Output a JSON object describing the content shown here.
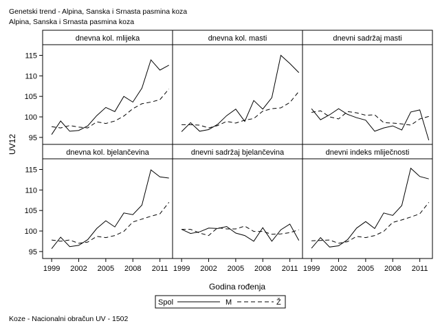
{
  "chart_data": {
    "type": "line",
    "title": "Genetski trend - Alpina, Sanska i Srnasta pasmina koza",
    "subtitle": "Alpina, Sanska i Srnasta pasmina koza",
    "xlabel": "Godina rođenja",
    "ylabel": "UV12",
    "footnote": "Koze - Nacionalni obračun UV - 1502",
    "legend": {
      "title": "Spol",
      "placement": "bottom-center",
      "entries": [
        {
          "label": "M",
          "style": "solid"
        },
        {
          "label": "Ž",
          "style": "dashed"
        }
      ]
    },
    "x": [
      1999,
      2000,
      2001,
      2002,
      2003,
      2004,
      2005,
      2006,
      2007,
      2008,
      2009,
      2010,
      2011,
      2012
    ],
    "xticks": [
      "1999",
      "2002",
      "2005",
      "2008",
      "2011"
    ],
    "xlim": [
      1998.0,
      2012.4
    ],
    "ylim": [
      93.3,
      117.6
    ],
    "yticks": [
      "95",
      "100",
      "105",
      "110",
      "115"
    ],
    "grid": false,
    "line_color": "#000000",
    "panels": [
      {
        "title": "dnevna kol. mlijeka",
        "series": [
          {
            "name": "M",
            "values": [
              95.7,
              99.0,
              96.5,
              96.7,
              97.8,
              100.3,
              102.3,
              101.3,
              105.0,
              103.6,
              107.0,
              113.9,
              111.4,
              112.6
            ]
          },
          {
            "name": "Ž",
            "values": [
              97.6,
              97.3,
              97.9,
              97.5,
              97.3,
              98.8,
              98.4,
              99.0,
              100.2,
              102.0,
              103.2,
              103.6,
              104.2,
              106.8
            ]
          }
        ]
      },
      {
        "title": "dnevna kol. masti",
        "series": [
          {
            "name": "M",
            "values": [
              96.4,
              98.6,
              96.5,
              96.9,
              98.2,
              100.3,
              101.9,
              98.9,
              104.0,
              101.9,
              104.7,
              115.0,
              113.0,
              110.8
            ]
          },
          {
            "name": "Ž",
            "values": [
              98.1,
              98.1,
              98.0,
              97.3,
              97.9,
              98.9,
              98.5,
              99.2,
              99.6,
              101.4,
              102.0,
              102.2,
              103.5,
              106.2
            ]
          }
        ]
      },
      {
        "title": "dnevni sadržaj masti",
        "series": [
          {
            "name": "M",
            "values": [
              102.0,
              99.3,
              100.5,
              102.0,
              100.6,
              99.8,
              99.2,
              96.5,
              97.3,
              97.8,
              96.8,
              101.2,
              101.7,
              94.3
            ]
          },
          {
            "name": "Ž",
            "values": [
              101.1,
              101.5,
              100.0,
              99.5,
              101.3,
              101.0,
              100.4,
              100.5,
              98.6,
              98.5,
              98.3,
              98.0,
              99.5,
              100.1
            ]
          }
        ]
      },
      {
        "title": "dnevna kol. bjelančevina",
        "series": [
          {
            "name": "M",
            "values": [
              95.7,
              98.5,
              96.2,
              96.5,
              97.9,
              100.6,
              102.5,
              101.0,
              104.4,
              104.0,
              106.3,
              114.9,
              113.2,
              112.9
            ]
          },
          {
            "name": "Ž",
            "values": [
              97.8,
              97.5,
              97.8,
              97.0,
              97.3,
              98.7,
              98.4,
              98.9,
              99.9,
              102.2,
              102.9,
              103.6,
              104.2,
              107.0
            ]
          }
        ]
      },
      {
        "title": "dnevni sadržaj bjelančevina",
        "series": [
          {
            "name": "M",
            "values": [
              100.4,
              99.4,
              99.8,
              100.7,
              100.6,
              101.1,
              99.5,
              98.9,
              97.5,
              100.8,
              97.5,
              100.3,
              101.7,
              97.7
            ]
          },
          {
            "name": "Ž",
            "values": [
              100.4,
              100.4,
              99.5,
              98.9,
              100.8,
              100.5,
              100.5,
              101.2,
              99.9,
              99.9,
              99.2,
              99.3,
              99.6,
              100.3
            ]
          }
        ]
      },
      {
        "title": "dnevni indeks mliječnosti",
        "series": [
          {
            "name": "M",
            "values": [
              95.8,
              98.4,
              96.1,
              96.4,
              97.9,
              100.7,
              102.3,
              100.6,
              104.4,
              103.8,
              106.2,
              115.3,
              113.3,
              112.7
            ]
          },
          {
            "name": "Ž",
            "values": [
              97.6,
              97.7,
              97.8,
              97.0,
              97.4,
              98.7,
              98.4,
              98.9,
              99.9,
              102.1,
              102.7,
              103.4,
              104.2,
              107.0
            ]
          }
        ]
      }
    ]
  }
}
